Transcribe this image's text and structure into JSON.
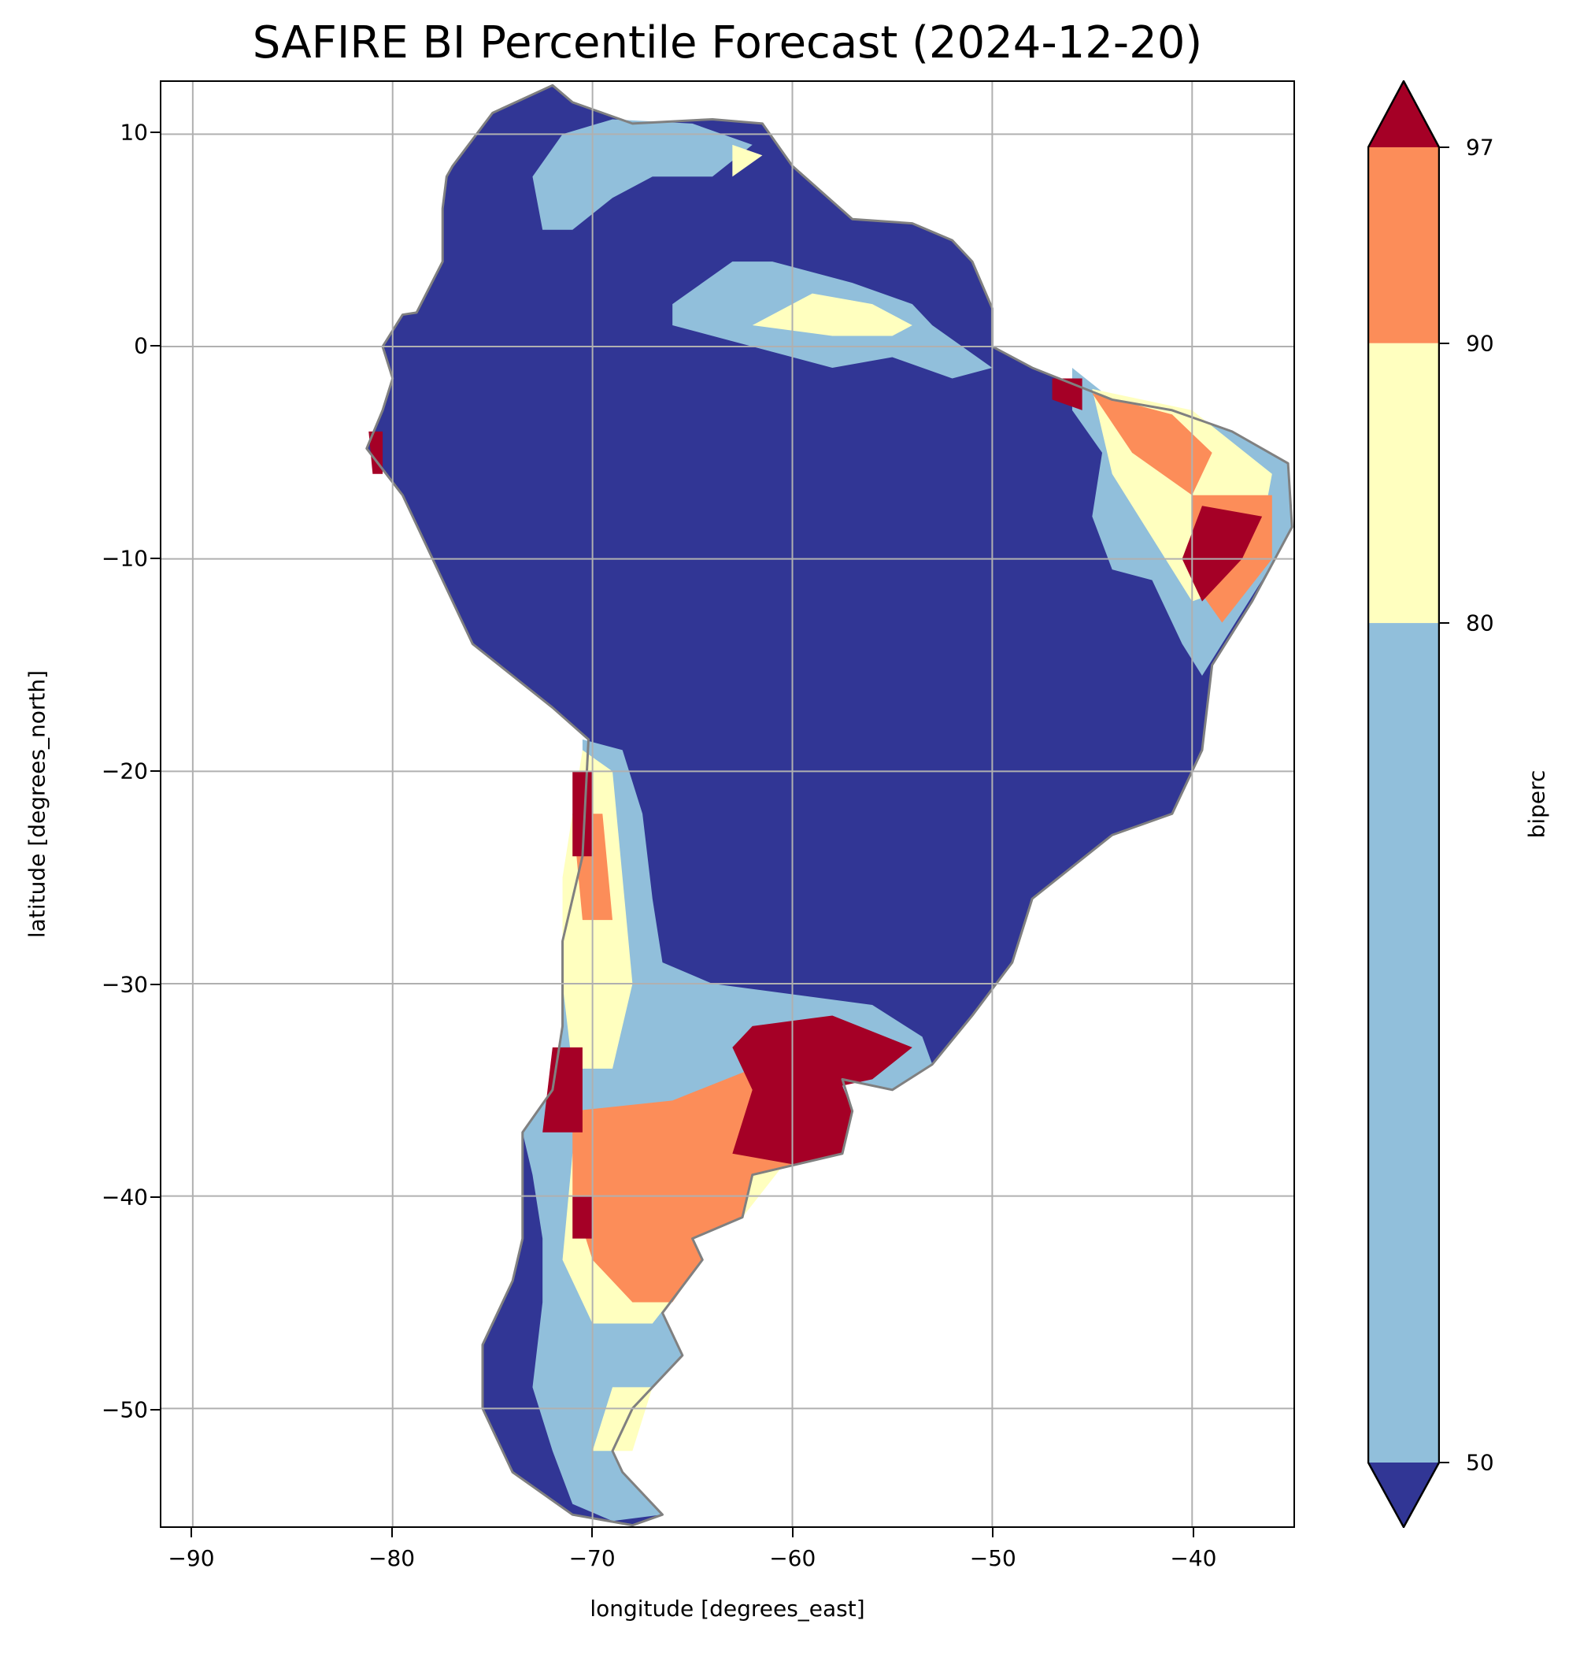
{
  "chart_data": {
    "type": "heatmap",
    "title": "SAFIRE BI Percentile Forecast (2024-12-20)",
    "xlabel": "longitude [degrees_east]",
    "ylabel": "latitude [degrees_north]",
    "xlim": [
      -91.57,
      -34.93
    ],
    "ylim": [
      -55.55,
      12.46
    ],
    "xticks": [
      -90,
      -80,
      -70,
      -60,
      -50,
      -40
    ],
    "xtick_labels": [
      "−90",
      "−80",
      "−70",
      "−60",
      "−50",
      "−40"
    ],
    "yticks": [
      10,
      0,
      -10,
      -20,
      -30,
      -40,
      -50
    ],
    "ytick_labels": [
      "10",
      "0",
      "−10",
      "−20",
      "−30",
      "−40",
      "−50"
    ],
    "grid": true,
    "region": "South America",
    "colorbar": {
      "label": "biperc",
      "levels": [
        50,
        80,
        90,
        97
      ],
      "tick_labels": [
        "50",
        "80",
        "90",
        "97"
      ],
      "extend": "both",
      "colors": {
        "under_50": "#313695",
        "50_80": "#91bfdb",
        "80_90": "#ffffbf",
        "90_97": "#fc8d59",
        "over_97": "#a50026"
      }
    },
    "border_color": "#808080",
    "grid_color": "#b0b0b0"
  }
}
